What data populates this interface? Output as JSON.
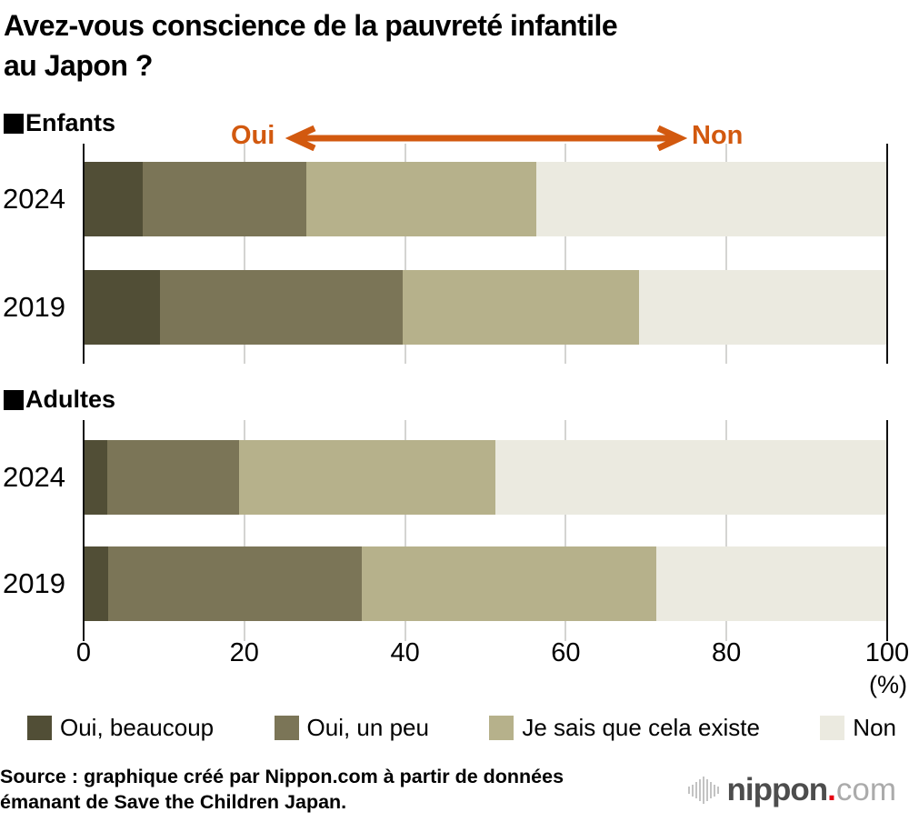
{
  "header": {
    "title_line1": "Avez-vous conscience de la pauvreté infantile",
    "title_line2": "au Japon ?"
  },
  "arrow": {
    "left_label": "Oui",
    "right_label": "Non",
    "color": "#d2590f"
  },
  "chart_data": {
    "type": "bar",
    "stacked": true,
    "orientation": "horizontal",
    "unit": "%",
    "xlim": [
      0,
      100
    ],
    "xticks": [
      0,
      20,
      40,
      60,
      80,
      100
    ],
    "x_axis_note": "(%)",
    "grid": true,
    "legend": [
      "Oui, beaucoup",
      "Oui, un peu",
      "Je sais que cela existe",
      "Non"
    ],
    "colors": [
      "#514e36",
      "#7b7557",
      "#b6b18b",
      "#ebeae0"
    ],
    "groups": [
      {
        "label": "Enfants",
        "rows": [
          {
            "year": "2024",
            "values": [
              7.4,
              20.3,
              28.6,
              43.7
            ]
          },
          {
            "year": "2019",
            "values": [
              9.5,
              30.2,
              29.4,
              30.9
            ]
          }
        ]
      },
      {
        "label": "Adultes",
        "rows": [
          {
            "year": "2024",
            "values": [
              2.9,
              16.4,
              32.0,
              48.7
            ]
          },
          {
            "year": "2019",
            "values": [
              3.1,
              31.5,
              36.7,
              28.7
            ]
          }
        ]
      }
    ]
  },
  "footer": {
    "source_line1": "Source : graphique créé par Nippon.com à partir de données",
    "source_line2": "émanant de Save the Children Japan.",
    "logo": {
      "name": "nippon",
      "dot": ".",
      "tld": "com"
    }
  }
}
